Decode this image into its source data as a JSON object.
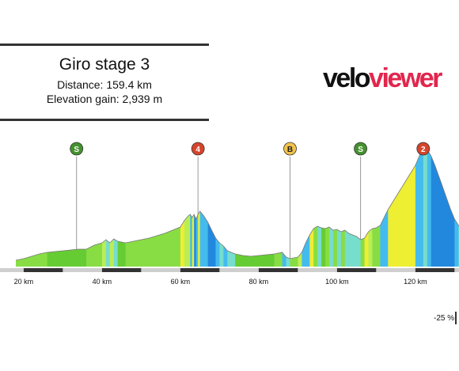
{
  "header": {
    "title": "Giro stage 3",
    "distance": "Distance: 159.4 km",
    "elevation_gain": "Elevation gain: 2,939 m"
  },
  "logo": {
    "part1": "velo",
    "part2": "viewer"
  },
  "gradient_scale_label": "-25 %",
  "chart_data": {
    "type": "area",
    "title": "Giro stage 3",
    "xlabel": "",
    "ylabel": "",
    "x_unit": "km",
    "xlim": [
      18,
      132
    ],
    "x_ticks": [
      {
        "km": 20,
        "label": "20 km"
      },
      {
        "km": 40,
        "label": "40 km"
      },
      {
        "km": 60,
        "label": "60 km"
      },
      {
        "km": 80,
        "label": "80 km"
      },
      {
        "km": 100,
        "label": "100 km"
      },
      {
        "km": 120,
        "label": "120 km"
      }
    ],
    "profile": [
      [
        18,
        8
      ],
      [
        20,
        10
      ],
      [
        22,
        13
      ],
      [
        24,
        16
      ],
      [
        26,
        18
      ],
      [
        28,
        19
      ],
      [
        30,
        20
      ],
      [
        32,
        21
      ],
      [
        34,
        22
      ],
      [
        36,
        22
      ],
      [
        38,
        27
      ],
      [
        40,
        30
      ],
      [
        41,
        34
      ],
      [
        42,
        30
      ],
      [
        43,
        35
      ],
      [
        44,
        32
      ],
      [
        46,
        30
      ],
      [
        48,
        32
      ],
      [
        50,
        34
      ],
      [
        52,
        36
      ],
      [
        54,
        39
      ],
      [
        56,
        42
      ],
      [
        58,
        46
      ],
      [
        60,
        50
      ],
      [
        61,
        58
      ],
      [
        62,
        64
      ],
      [
        62.5,
        66
      ],
      [
        63,
        62
      ],
      [
        63.5,
        66
      ],
      [
        64,
        60
      ],
      [
        64.5,
        66
      ],
      [
        65,
        70
      ],
      [
        66,
        64
      ],
      [
        67,
        56
      ],
      [
        68,
        46
      ],
      [
        69,
        36
      ],
      [
        70,
        30
      ],
      [
        71,
        26
      ],
      [
        72,
        20
      ],
      [
        74,
        16
      ],
      [
        76,
        14
      ],
      [
        78,
        13
      ],
      [
        80,
        14
      ],
      [
        82,
        15
      ],
      [
        84,
        16
      ],
      [
        86,
        18
      ],
      [
        87,
        12
      ],
      [
        88,
        10
      ],
      [
        90,
        12
      ],
      [
        91,
        18
      ],
      [
        92,
        30
      ],
      [
        93,
        40
      ],
      [
        94,
        48
      ],
      [
        95,
        51
      ],
      [
        96,
        49
      ],
      [
        97,
        48
      ],
      [
        98,
        50
      ],
      [
        99,
        46
      ],
      [
        100,
        47
      ],
      [
        101,
        44
      ],
      [
        102,
        46
      ],
      [
        103,
        42
      ],
      [
        104,
        40
      ],
      [
        105,
        38
      ],
      [
        106,
        34
      ],
      [
        107,
        36
      ],
      [
        108,
        44
      ],
      [
        109,
        48
      ],
      [
        110,
        49
      ],
      [
        111,
        52
      ],
      [
        112,
        62
      ],
      [
        113,
        72
      ],
      [
        114,
        80
      ],
      [
        115,
        88
      ],
      [
        116,
        96
      ],
      [
        117,
        104
      ],
      [
        118,
        112
      ],
      [
        119,
        120
      ],
      [
        120,
        128
      ],
      [
        121,
        140
      ],
      [
        122,
        152
      ],
      [
        123,
        148
      ],
      [
        124,
        140
      ],
      [
        125,
        128
      ],
      [
        126,
        114
      ],
      [
        127,
        100
      ],
      [
        128,
        86
      ],
      [
        129,
        72
      ],
      [
        130,
        60
      ],
      [
        131,
        52
      ],
      [
        132,
        48
      ]
    ],
    "gradient_colors": [
      "#66cc33",
      "#88dd44",
      "#bbee55",
      "#eeee33",
      "#ffcc33",
      "#ff9933",
      "#ee5522",
      "#cc2233",
      "#44bbee",
      "#2288dd",
      "#5566cc",
      "#77ddcc"
    ],
    "markers": [
      {
        "km": 33.5,
        "label": "S",
        "color": "#44922e"
      },
      {
        "km": 64.5,
        "label": "4",
        "color": "#d6442c"
      },
      {
        "km": 88,
        "label": "B",
        "color": "#f2c24a"
      },
      {
        "km": 106,
        "label": "S",
        "color": "#44922e"
      },
      {
        "km": 122,
        "label": "2",
        "color": "#d6442c"
      }
    ]
  }
}
